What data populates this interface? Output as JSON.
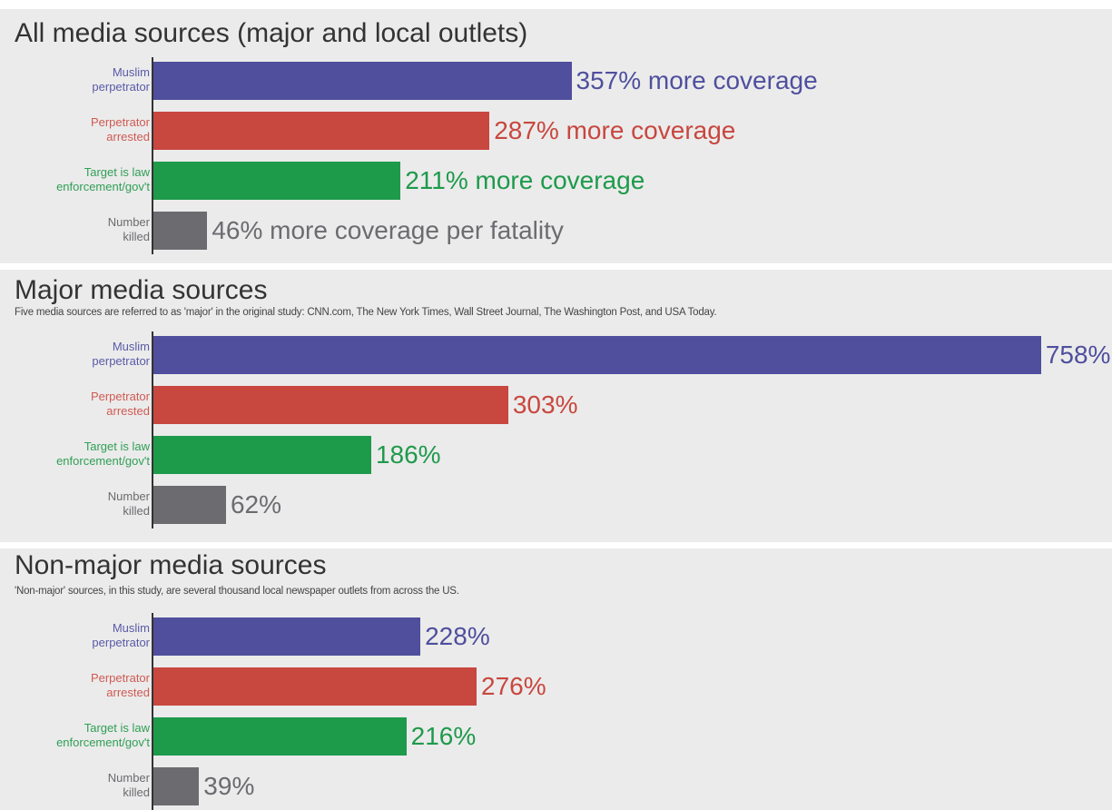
{
  "chart_data": [
    {
      "type": "bar",
      "orientation": "horizontal",
      "title": "All media sources (major and local outlets)",
      "categories": [
        "Muslim\nperpetrator",
        "Perpetrator\narrested",
        "Target is law\nenforcement/gov't",
        "Number\nkilled"
      ],
      "values": [
        357,
        287,
        211,
        46
      ],
      "value_labels": [
        "357% more coverage",
        "287% more coverage",
        "211% more coverage",
        "46% more coverage per fatality"
      ],
      "colors": [
        "#4f4f9e",
        "#c8473f",
        "#1e9a4b",
        "#6b6b70"
      ]
    },
    {
      "type": "bar",
      "orientation": "horizontal",
      "title": "Major media sources",
      "subtitle": "Five media sources are referred to as 'major' in the original study: CNN.com, The New York Times, Wall Street Journal, The Washington Post, and USA Today.",
      "categories": [
        "Muslim\nperpetrator",
        "Perpetrator\narrested",
        "Target is law\nenforcement/gov't",
        "Number\nkilled"
      ],
      "values": [
        758,
        303,
        186,
        62
      ],
      "value_labels": [
        "758%",
        "303%",
        "186%",
        "62%"
      ],
      "colors": [
        "#4f4f9e",
        "#c8473f",
        "#1e9a4b",
        "#6b6b70"
      ]
    },
    {
      "type": "bar",
      "orientation": "horizontal",
      "title": "Non-major media sources",
      "subtitle": "'Non-major' sources, in this study, are several thousand local newspaper outlets from across the US.",
      "categories": [
        "Muslim\nperpetrator",
        "Perpetrator\narrested",
        "Target is law\nenforcement/gov't",
        "Number\nkilled"
      ],
      "values": [
        228,
        276,
        216,
        39
      ],
      "value_labels": [
        "228%",
        "276%",
        "216%",
        "39%"
      ],
      "colors": [
        "#4f4f9e",
        "#c8473f",
        "#1e9a4b",
        "#6b6b70"
      ]
    }
  ]
}
